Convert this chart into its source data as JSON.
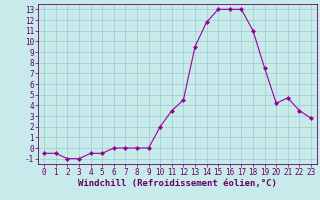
{
  "x": [
    0,
    1,
    2,
    3,
    4,
    5,
    6,
    7,
    8,
    9,
    10,
    11,
    12,
    13,
    14,
    15,
    16,
    17,
    18,
    19,
    20,
    21,
    22,
    23
  ],
  "y": [
    -0.5,
    -0.5,
    -1.0,
    -1.0,
    -0.5,
    -0.5,
    0.0,
    0.0,
    0.0,
    0.0,
    2.0,
    3.5,
    4.5,
    9.5,
    11.8,
    13.0,
    13.0,
    13.0,
    11.0,
    7.5,
    4.2,
    4.7,
    3.5,
    2.8
  ],
  "line_color": "#990099",
  "marker": "D",
  "marker_size": 2.0,
  "bg_color": "#c8eaea",
  "grid_color": "#99cccc",
  "xlabel": "Windchill (Refroidissement éolien,°C)",
  "xlim": [
    -0.5,
    23.5
  ],
  "ylim": [
    -1.5,
    13.5
  ],
  "yticks": [
    -1,
    0,
    1,
    2,
    3,
    4,
    5,
    6,
    7,
    8,
    9,
    10,
    11,
    12,
    13
  ],
  "xticks": [
    0,
    1,
    2,
    3,
    4,
    5,
    6,
    7,
    8,
    9,
    10,
    11,
    12,
    13,
    14,
    15,
    16,
    17,
    18,
    19,
    20,
    21,
    22,
    23
  ],
  "tick_color": "#660066",
  "label_color": "#660066",
  "xlabel_fontsize": 6.5,
  "tick_fontsize": 5.5,
  "spine_color": "#660066",
  "linewidth": 0.8
}
